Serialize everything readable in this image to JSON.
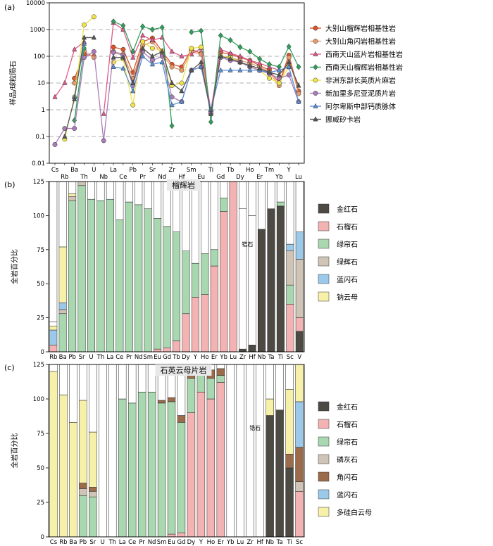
{
  "chart_data": [
    {
      "type": "line",
      "panel_label": "(a)",
      "title": "",
      "ylabel": "样品/球粒陨石",
      "xlabel": "",
      "yscale": "log",
      "ylim": [
        0.01,
        10000
      ],
      "y_ticks": [
        "10000",
        "1000",
        "100",
        "10",
        "1",
        "0.1",
        "0.01"
      ],
      "grid": "dashed horizontal",
      "legend": "right",
      "categories": [
        "Cs",
        "Rb",
        "Ba",
        "Th",
        "U",
        "Nb",
        "La",
        "Ce",
        "Pb",
        "Pr",
        "Sr",
        "Nd",
        "Zr",
        "Hf",
        "Sm",
        "Eu",
        "Ti",
        "Gd",
        "Tb",
        "Dy",
        "Ho",
        "Er",
        "Tm",
        "Yb",
        "Y",
        "Lu"
      ],
      "series": [
        {
          "name": "大别山榴辉岩相基性岩",
          "color": "#d9542b",
          "marker": "circle",
          "values": [
            null,
            null,
            15,
            120,
            100,
            null,
            220,
            180,
            25,
            350,
            480,
            150,
            50,
            40,
            180,
            130,
            0.9,
            140,
            120,
            90,
            70,
            45,
            30,
            10,
            110,
            5
          ]
        },
        {
          "name": "大别山角闪岩相基性岩",
          "color": "#e39a68",
          "marker": "circle",
          "values": [
            null,
            null,
            10,
            160,
            90,
            null,
            150,
            120,
            15,
            250,
            350,
            120,
            40,
            30,
            150,
            120,
            0.7,
            100,
            90,
            70,
            55,
            40,
            25,
            8,
            90,
            4
          ]
        },
        {
          "name": "西南天山蓝片岩相基性岩",
          "color": "#e05a8a",
          "marker": "triangle",
          "values": [
            3,
            10,
            180,
            350,
            null,
            0.7,
            1800,
            1000,
            90,
            600,
            400,
            500,
            150,
            100,
            120,
            200,
            0.9,
            180,
            130,
            100,
            70,
            55,
            40,
            30,
            40,
            null
          ]
        },
        {
          "name": "西南天山榴辉岩相基性岩",
          "color": "#2f9e5b",
          "marker": "diamond",
          "values": [
            null,
            null,
            0.4,
            200,
            null,
            null,
            2000,
            1400,
            150,
            1300,
            1000,
            1200,
            0.25,
            null,
            800,
            900,
            0.35,
            600,
            400,
            220,
            150,
            80,
            50,
            40,
            230,
            40
          ]
        },
        {
          "name": "非洲东部长英质片麻岩",
          "color": "#f0e34a",
          "marker": "circle",
          "values": [
            null,
            0.08,
            3,
            1500,
            3000,
            null,
            60,
            80,
            1.5,
            350,
            200,
            160,
            8,
            10,
            200,
            220,
            null,
            100,
            90,
            60,
            40,
            30,
            15,
            10,
            40,
            null
          ]
        },
        {
          "name": "新加里多尼亚泥质片岩",
          "color": "#a97cb8",
          "marker": "circle",
          "values": [
            0.05,
            0.2,
            0.2,
            90,
            150,
            0.07,
            140,
            110,
            8,
            150,
            70,
            100,
            3,
            2,
            30,
            40,
            0.8,
            90,
            70,
            60,
            40,
            30,
            22,
            15,
            20,
            2
          ]
        },
        {
          "name": "阿尔卑斯中部钙质脉体",
          "color": "#5b8fd6",
          "marker": "triangle",
          "values": [
            null,
            null,
            3,
            300,
            null,
            null,
            40,
            35,
            5,
            100,
            50,
            60,
            1.5,
            2,
            30,
            40,
            1,
            30,
            30,
            30,
            30,
            30,
            25,
            30,
            40,
            2
          ]
        },
        {
          "name": "挪威矽卡岩",
          "color": "#555555",
          "marker": "triangle",
          "values": [
            null,
            0.1,
            2.5,
            500,
            500,
            null,
            90,
            90,
            10,
            200,
            100,
            150,
            10,
            5,
            30,
            60,
            0.7,
            100,
            80,
            60,
            45,
            35,
            25,
            20,
            60,
            8
          ]
        }
      ]
    },
    {
      "type": "bar",
      "stacked": true,
      "panel_label": "(b)",
      "title": "榴辉岩",
      "ylabel": "全岩百分比",
      "ylim": [
        0,
        125
      ],
      "y_ticks": [
        "0",
        "25",
        "50",
        "75",
        "100",
        "125"
      ],
      "legend": "right",
      "annotation": "锆石",
      "categories": [
        "Rb",
        "Ba",
        "Pb",
        "Sr",
        "U",
        "Th",
        "La",
        "Ce",
        "Pr",
        "Nd",
        "Sm",
        "Eu",
        "Gd",
        "Tb",
        "Dy",
        "Y",
        "Ho",
        "Er",
        "Yb",
        "Lu",
        "Zr",
        "Hf",
        "Nb",
        "Ta",
        "Ti",
        "Sc",
        "V"
      ],
      "series": [
        {
          "name": "金红石",
          "color": "#4d4a44",
          "values": [
            0,
            0,
            0,
            0,
            0,
            0,
            0,
            0,
            0,
            0,
            0,
            0,
            0,
            0,
            0,
            0,
            0,
            0,
            0,
            0,
            2,
            5,
            90,
            105,
            107,
            0,
            15
          ]
        },
        {
          "name": "石榴石",
          "color": "#f4b3b3",
          "values": [
            5,
            0,
            0,
            0,
            0,
            0,
            0,
            0,
            0,
            0,
            0,
            2,
            3,
            8,
            28,
            40,
            42,
            63,
            103,
            125,
            0,
            0,
            0,
            0,
            0,
            35,
            10
          ]
        },
        {
          "name": "绿帘石",
          "color": "#a9d8b0",
          "values": [
            0,
            28,
            111,
            122,
            112,
            111,
            112,
            97,
            110,
            108,
            105,
            96,
            89,
            80,
            46,
            25,
            30,
            12,
            10,
            0,
            0,
            0,
            0,
            0,
            3,
            14,
            0
          ]
        },
        {
          "name": "绿辉石",
          "color": "#cfc4b5",
          "values": [
            0,
            3,
            3,
            3,
            0,
            0,
            0,
            0,
            0,
            0,
            0,
            0,
            0,
            0,
            0,
            0,
            0,
            0,
            0,
            0,
            0,
            0,
            0,
            0,
            0,
            25,
            43
          ]
        },
        {
          "name": "蓝闪石",
          "color": "#9ac9ea",
          "values": [
            11,
            5,
            0,
            0,
            0,
            0,
            0,
            0,
            0,
            0,
            0,
            0,
            0,
            0,
            0,
            0,
            0,
            0,
            0,
            0,
            0,
            0,
            0,
            0,
            0,
            5,
            20
          ]
        },
        {
          "name": "钠云母",
          "color": "#f7f0a8",
          "values": [
            3,
            41,
            2,
            0,
            0,
            0,
            0,
            0,
            0,
            0,
            0,
            0,
            0,
            0,
            0,
            0,
            0,
            0,
            0,
            0,
            0,
            0,
            0,
            0,
            0,
            0,
            0
          ]
        },
        {
          "name": "锆石",
          "color": "#ffffff",
          "values": [
            3,
            0,
            0,
            0,
            0,
            0,
            0,
            0,
            0,
            0,
            0,
            0,
            0,
            0,
            0,
            0,
            0,
            0,
            0,
            0,
            103,
            95,
            0,
            0,
            0,
            0,
            0
          ]
        }
      ]
    },
    {
      "type": "bar",
      "stacked": true,
      "panel_label": "(c)",
      "title": "石英云母片岩",
      "ylabel": "全岩百分比",
      "ylim": [
        0,
        125
      ],
      "y_ticks": [
        "0",
        "25",
        "50",
        "75",
        "100",
        "125"
      ],
      "legend": "right",
      "annotation": "锆石",
      "categories": [
        "Cs",
        "Rb",
        "Ba",
        "Pb",
        "Sr",
        "U",
        "Th",
        "La",
        "Ce",
        "Pr",
        "Nd",
        "Sm",
        "Eu",
        "Gd",
        "Dy",
        "Y",
        "Ho",
        "Er",
        "Yb",
        "Lu",
        "Zr",
        "Hf",
        "Nb",
        "Ta",
        "Ti",
        "Sc"
      ],
      "series": [
        {
          "name": "金红石",
          "color": "#4d4a44",
          "values": [
            0,
            0,
            0,
            0,
            0,
            0,
            0,
            0,
            0,
            0,
            0,
            0,
            0,
            0,
            0,
            0,
            0,
            0,
            0,
            0,
            0,
            0,
            88,
            92,
            50,
            0
          ]
        },
        {
          "name": "石榴石",
          "color": "#f4b3b3",
          "values": [
            0,
            0,
            0,
            0,
            0,
            0,
            0,
            0,
            0,
            0,
            0,
            0,
            2,
            3,
            90,
            105,
            100,
            112,
            0,
            0,
            0,
            0,
            0,
            0,
            0,
            33
          ]
        },
        {
          "name": "绿帘石",
          "color": "#a9d8b0",
          "values": [
            0,
            0,
            0,
            30,
            29,
            0,
            0,
            100,
            97,
            105,
            105,
            97,
            96,
            80,
            25,
            15,
            15,
            5,
            0,
            0,
            0,
            0,
            0,
            0,
            0,
            0
          ]
        },
        {
          "name": "磷灰石",
          "color": "#cfc4b5",
          "values": [
            0,
            0,
            0,
            5,
            4,
            0,
            0,
            0,
            0,
            0,
            0,
            0,
            0,
            0,
            0,
            0,
            0,
            0,
            0,
            0,
            0,
            0,
            0,
            0,
            0,
            7
          ]
        },
        {
          "name": "角闪石",
          "color": "#9c6b4a",
          "values": [
            0,
            0,
            0,
            4,
            3,
            0,
            0,
            0,
            0,
            0,
            0,
            2,
            3,
            5,
            5,
            5,
            6,
            5,
            0,
            0,
            0,
            0,
            0,
            0,
            10,
            25
          ]
        },
        {
          "name": "蓝闪石",
          "color": "#9ac9ea",
          "values": [
            0,
            0,
            0,
            0,
            0,
            0,
            0,
            0,
            0,
            0,
            0,
            0,
            0,
            0,
            0,
            0,
            0,
            0,
            0,
            0,
            0,
            0,
            0,
            0,
            0,
            33
          ]
        },
        {
          "name": "多硅白云母",
          "color": "#f7f0a8",
          "values": [
            120,
            103,
            83,
            60,
            40,
            0,
            0,
            0,
            0,
            0,
            0,
            0,
            0,
            0,
            0,
            0,
            0,
            0,
            0,
            0,
            0,
            0,
            12,
            0,
            47,
            28
          ]
        },
        {
          "name": "锆石",
          "color": "#ffffff",
          "values": [
            0,
            0,
            0,
            0,
            0,
            0,
            0,
            0,
            0,
            0,
            0,
            0,
            0,
            0,
            0,
            0,
            0,
            0,
            0,
            0,
            0,
            0,
            0,
            0,
            0,
            0
          ]
        }
      ]
    }
  ]
}
